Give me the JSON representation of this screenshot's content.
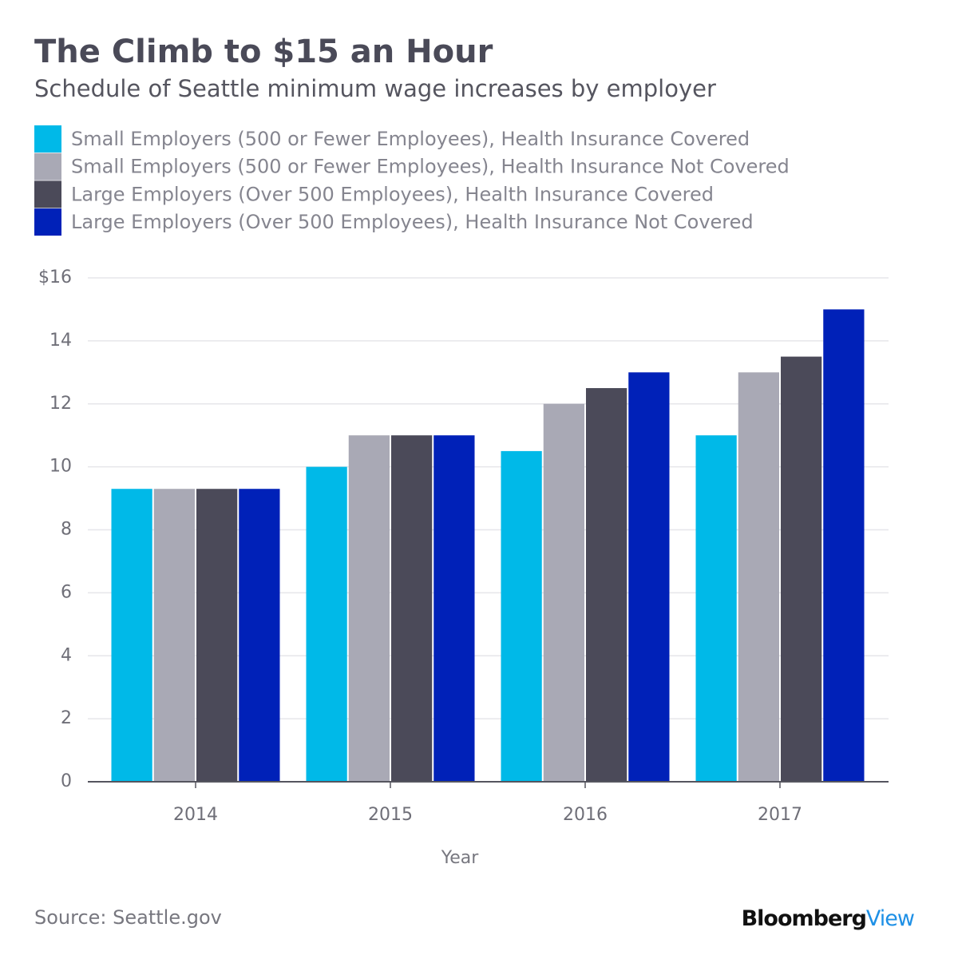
{
  "chart_data": {
    "type": "bar",
    "title": "The Climb to $15 an Hour",
    "subtitle": "Schedule of Seattle minimum wage increases by employer",
    "x_label": "Year",
    "source": "Source: Seattle.gov",
    "logo": {
      "primary": "Bloomberg",
      "secondary": "View"
    },
    "categories": [
      "2014",
      "2015",
      "2016",
      "2017"
    ],
    "series": [
      {
        "name": "Small Employers (500 or Fewer Employees), Health Insurance Covered",
        "color": "#00b9e8",
        "values": [
          9.3,
          10,
          10.5,
          11
        ]
      },
      {
        "name": "Small Employers (500 or Fewer Employees), Health Insurance Not Covered",
        "color": "#a9a9b5",
        "values": [
          9.3,
          11,
          12,
          13
        ]
      },
      {
        "name": "Large Employers (Over 500 Employees), Health Insurance Covered",
        "color": "#4b4a59",
        "values": [
          9.3,
          11,
          12.5,
          13.5
        ]
      },
      {
        "name": "Large Employers (Over 500 Employees), Health Insurance Not Covered",
        "color": "#0021b8",
        "values": [
          9.3,
          11,
          13,
          15
        ]
      }
    ],
    "ylim": [
      0,
      16
    ],
    "yticks": [
      0,
      2,
      4,
      6,
      8,
      10,
      12,
      14,
      {
        "value": 16,
        "label": "$16"
      }
    ],
    "grid": true
  }
}
